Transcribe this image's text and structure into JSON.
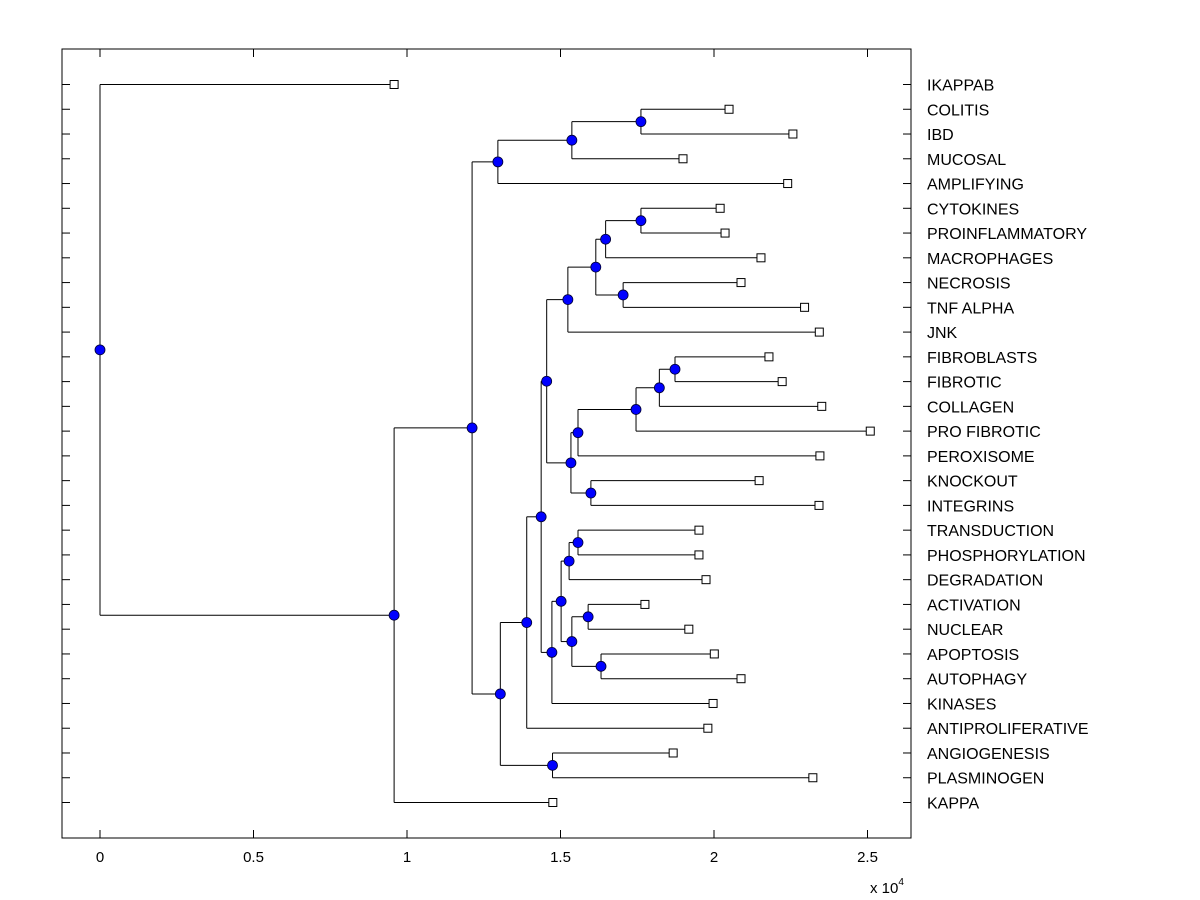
{
  "chart_data": {
    "type": "dendrogram",
    "title": "",
    "xlabel": "",
    "ylabel": "",
    "x_multiplier": "x 10",
    "x_multiplier_exponent": "4",
    "xlim": [
      -1200,
      26500
    ],
    "xticks": [
      0,
      5000,
      10000,
      15000,
      20000,
      25000
    ],
    "xtick_labels": [
      "0",
      "0.5",
      "1",
      "1.5",
      "2",
      "2.5"
    ],
    "grid": false,
    "internal_node_color": "#0000ff",
    "leaf_marker": "open-square",
    "leaves": [
      "IKAPPAB",
      "COLITIS",
      "IBD",
      "MUCOSAL",
      "AMPLIFYING",
      "CYTOKINES",
      "PROINFLAMMATORY",
      "MACROPHAGES",
      "NECROSIS",
      "TNF ALPHA",
      "JNK",
      "FIBROBLASTS",
      "FIBROTIC",
      "COLLAGEN",
      "PRO FIBROTIC",
      "PEROXISOME",
      "KNOCKOUT",
      "INTEGRINS",
      "TRANSDUCTION",
      "PHOSPHORYLATION",
      "DEGRADATION",
      "ACTIVATION",
      "NUCLEAR",
      "APOPTOSIS",
      "AUTOPHAGY",
      "KINASES",
      "ANTIPROLIFERATIVE",
      "ANGIOGENESIS",
      "PLASMINOGEN",
      "KAPPA"
    ],
    "tree": {
      "x": 0,
      "children": [
        {
          "leaf": "IKAPPAB",
          "x": 9580
        },
        {
          "x": 9580,
          "children": [
            {
              "x": 12120,
              "children": [
                {
                  "x": 12960,
                  "children": [
                    {
                      "x": 15370,
                      "children": [
                        {
                          "x": 17620,
                          "children": [
                            {
                              "leaf": "COLITIS",
                              "x": 20490
                            },
                            {
                              "leaf": "IBD",
                              "x": 22570
                            }
                          ]
                        },
                        {
                          "leaf": "MUCOSAL",
                          "x": 18990
                        }
                      ]
                    },
                    {
                      "leaf": "AMPLIFYING",
                      "x": 22400
                    }
                  ]
                },
                {
                  "x": 13040,
                  "children": [
                    {
                      "x": 13900,
                      "children": [
                        {
                          "x": 14370,
                          "children": [
                            {
                              "x": 14550,
                              "children": [
                                {
                                  "x": 15240,
                                  "children": [
                                    {
                                      "x": 16150,
                                      "children": [
                                        {
                                          "x": 16470,
                                          "children": [
                                            {
                                              "x": 17620,
                                              "children": [
                                                {
                                                  "leaf": "CYTOKINES",
                                                  "x": 20200
                                                },
                                                {
                                                  "leaf": "PROINFLAMMATORY",
                                                  "x": 20360
                                                }
                                              ]
                                            },
                                            {
                                              "leaf": "MACROPHAGES",
                                              "x": 21530
                                            }
                                          ]
                                        },
                                        {
                                          "x": 17040,
                                          "children": [
                                            {
                                              "leaf": "NECROSIS",
                                              "x": 20880
                                            },
                                            {
                                              "leaf": "TNF ALPHA",
                                              "x": 22950
                                            }
                                          ]
                                        }
                                      ]
                                    },
                                    {
                                      "leaf": "JNK",
                                      "x": 23430
                                    }
                                  ]
                                },
                                {
                                  "x": 15340,
                                  "children": [
                                    {
                                      "x": 15570,
                                      "children": [
                                        {
                                          "x": 17460,
                                          "children": [
                                            {
                                              "x": 18220,
                                              "children": [
                                                {
                                                  "x": 18730,
                                                  "children": [
                                                    {
                                                      "leaf": "FIBROBLASTS",
                                                      "x": 21790
                                                    },
                                                    {
                                                      "leaf": "FIBROTIC",
                                                      "x": 22220
                                                    }
                                                  ]
                                                },
                                                {
                                                  "leaf": "COLLAGEN",
                                                  "x": 23510
                                                }
                                              ]
                                            },
                                            {
                                              "leaf": "PRO FIBROTIC",
                                              "x": 25090
                                            }
                                          ]
                                        },
                                        {
                                          "leaf": "PEROXISOME",
                                          "x": 23450
                                        }
                                      ]
                                    },
                                    {
                                      "x": 15990,
                                      "children": [
                                        {
                                          "leaf": "KNOCKOUT",
                                          "x": 21470
                                        },
                                        {
                                          "leaf": "INTEGRINS",
                                          "x": 23420
                                        }
                                      ]
                                    }
                                  ]
                                }
                              ]
                            },
                            {
                              "x": 14720,
                              "children": [
                                {
                                  "x": 15020,
                                  "children": [
                                    {
                                      "x": 15280,
                                      "children": [
                                        {
                                          "x": 15570,
                                          "children": [
                                            {
                                              "leaf": "TRANSDUCTION",
                                              "x": 19510
                                            },
                                            {
                                              "leaf": "PHOSPHORYLATION",
                                              "x": 19510
                                            }
                                          ]
                                        },
                                        {
                                          "leaf": "DEGRADATION",
                                          "x": 19740
                                        }
                                      ]
                                    },
                                    {
                                      "x": 15370,
                                      "children": [
                                        {
                                          "x": 15900,
                                          "children": [
                                            {
                                              "leaf": "ACTIVATION",
                                              "x": 17750
                                            },
                                            {
                                              "leaf": "NUCLEAR",
                                              "x": 19180
                                            }
                                          ]
                                        },
                                        {
                                          "x": 16320,
                                          "children": [
                                            {
                                              "leaf": "APOPTOSIS",
                                              "x": 20010
                                            },
                                            {
                                              "leaf": "AUTOPHAGY",
                                              "x": 20880
                                            }
                                          ]
                                        }
                                      ]
                                    }
                                  ]
                                },
                                {
                                  "leaf": "KINASES",
                                  "x": 19970
                                }
                              ]
                            }
                          ]
                        },
                        {
                          "leaf": "ANTIPROLIFERATIVE",
                          "x": 19800
                        }
                      ]
                    },
                    {
                      "x": 14740,
                      "children": [
                        {
                          "leaf": "ANGIOGENESIS",
                          "x": 18670
                        },
                        {
                          "leaf": "PLASMINOGEN",
                          "x": 23220
                        }
                      ]
                    }
                  ]
                }
              ]
            },
            {
              "leaf": "KAPPA",
              "x": 14750
            }
          ]
        }
      ]
    }
  }
}
